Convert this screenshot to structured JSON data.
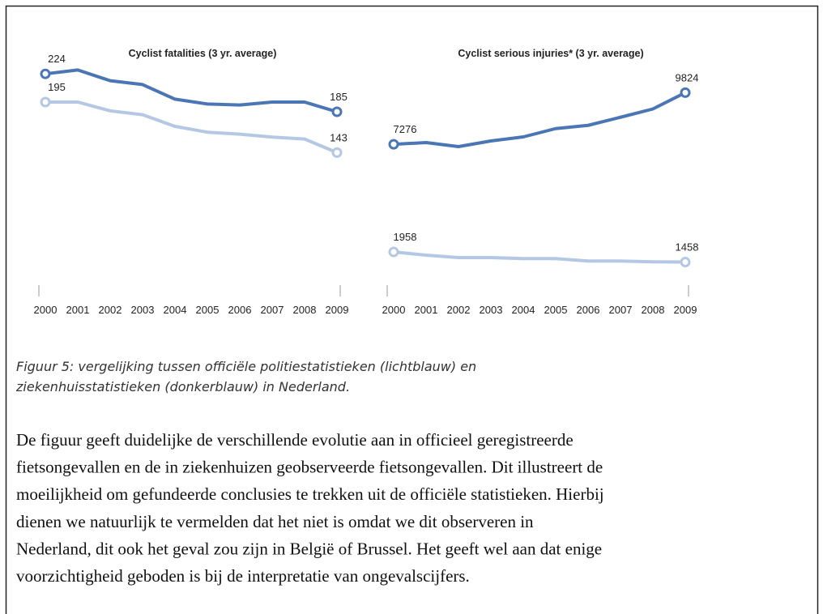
{
  "chart_data": [
    {
      "type": "line",
      "title": "Cyclist fatalities (3 yr. average)",
      "categories": [
        "2000",
        "2001",
        "2002",
        "2003",
        "2004",
        "2005",
        "2006",
        "2007",
        "2008",
        "2009"
      ],
      "series": [
        {
          "color": "#4a76b5",
          "values": [
            224,
            228,
            217,
            213,
            198,
            193,
            192,
            195,
            195,
            185
          ]
        },
        {
          "color": "#b4c8e4",
          "values": [
            195,
            195,
            186,
            182,
            170,
            164,
            162,
            159,
            157,
            143
          ]
        }
      ],
      "ylim": [
        0,
        250
      ]
    },
    {
      "type": "line",
      "title": "Cyclist serious injuries* (3 yr. average)",
      "categories": [
        "2000",
        "2001",
        "2002",
        "2003",
        "2004",
        "2005",
        "2006",
        "2007",
        "2008",
        "2009"
      ],
      "series": [
        {
          "color": "#4a76b5",
          "values": [
            7276,
            7360,
            7160,
            7440,
            7640,
            8050,
            8210,
            8610,
            9020,
            9824
          ]
        },
        {
          "color": "#b4c8e4",
          "values": [
            1958,
            1800,
            1680,
            1680,
            1630,
            1630,
            1510,
            1510,
            1470,
            1458
          ]
        }
      ],
      "ylim": [
        0,
        12000
      ]
    }
  ],
  "caption": [
    "Figuur 5: vergelijking tussen officiële politiestatistieken (lichtblauw) en",
    "ziekenhuisstatistieken (donkerblauw) in Nederland."
  ],
  "paragraph": [
    "De figuur geeft duidelijke de verschillende evolutie aan in officieel geregistreerde",
    "fietsongevallen en de in ziekenhuizen geobserveerde fietsongevallen. Dit illustreert de",
    "moeilijkheid om gefundeerde conclusies te trekken uit de officiële statistieken. Hierbij",
    "dienen we natuurlijk te vermelden dat het niet is omdat we dit observeren in",
    "Nederland, dit ook het geval zou zijn in België of Brussel. Het geeft wel aan dat enige",
    "voorzichtigheid geboden is bij de interpretatie van ongevalscijfers."
  ]
}
